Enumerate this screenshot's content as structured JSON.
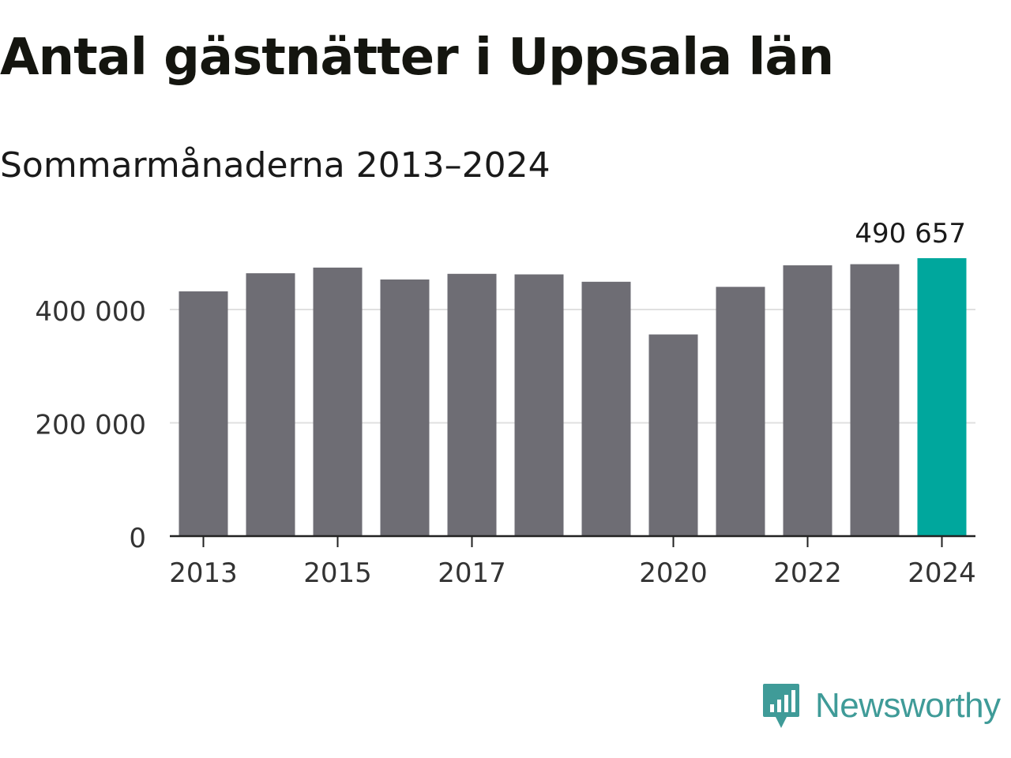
{
  "title": "Antal gästnätter i Uppsala län",
  "subtitle": "Sommarmånaderna 2013–2024",
  "brand": {
    "name": "Newsworthy",
    "color": "#3f9b98",
    "icon": "newsworthy-logo-icon"
  },
  "colors": {
    "bar": "#6e6d74",
    "highlight": "#00a79d",
    "grid": "#e0e0e0",
    "axis": "#222222"
  },
  "chart_data": {
    "type": "bar",
    "categories": [
      "2013",
      "2014",
      "2015",
      "2016",
      "2017",
      "2018",
      "2019",
      "2020",
      "2021",
      "2022",
      "2023",
      "2024"
    ],
    "values": [
      432000,
      464000,
      474000,
      453000,
      463000,
      462000,
      449000,
      356000,
      440000,
      478000,
      480000,
      490657
    ],
    "highlight_index": 11,
    "xtick_labels": [
      "2013",
      "2015",
      "2017",
      "2020",
      "2022",
      "2024"
    ],
    "yticks": [
      0,
      200000,
      400000
    ],
    "ytick_labels": [
      "0",
      "200 000",
      "400 000"
    ],
    "ylim": [
      0,
      500000
    ],
    "data_labels": [
      {
        "index": 11,
        "text": "490 657"
      }
    ],
    "grid": true,
    "legend": false
  }
}
